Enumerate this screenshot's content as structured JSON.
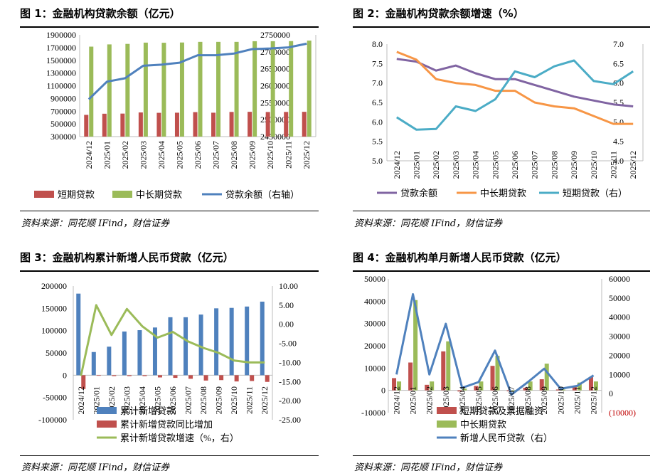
{
  "charts": [
    {
      "title": "图 1：金融机构贷款余额（亿元）",
      "source": "资料来源：同花顺 IFind，财信证券",
      "chart_data": {
        "type": "bar",
        "categories": [
          "2024/12",
          "2025/01",
          "2025/02",
          "2025/03",
          "2025/04",
          "2025/05",
          "2025/06",
          "2025/07",
          "2025/08",
          "2025/09",
          "2025/10",
          "2025/11",
          "2025/12"
        ],
        "left_ticks": [
          "1900000",
          "1700000",
          "1500000",
          "1300000",
          "1100000",
          "900000",
          "700000",
          "500000",
          "300000"
        ],
        "right_ticks": [
          "2750000",
          "2700000",
          "2650000",
          "2600000",
          "2550000",
          "2500000",
          "2450000"
        ],
        "ylim_left": [
          300000,
          1900000
        ],
        "ylim_right": [
          2450000,
          2750000
        ],
        "series": [
          {
            "name": "短期贷款",
            "kind": "bar",
            "axis": "left",
            "color": "#C0504D",
            "values": [
              642000,
              660000,
              662000,
              680000,
              674000,
              676000,
              685000,
              676000,
              688000,
              690000,
              687000,
              688000,
              690000
            ]
          },
          {
            "name": "中长期贷款",
            "kind": "bar",
            "axis": "left",
            "color": "#9BBB59",
            "values": [
              1715000,
              1750000,
              1758000,
              1778000,
              1776000,
              1780000,
              1790000,
              1790000,
              1790000,
              1800000,
              1800000,
              1802000,
              1810000
            ]
          },
          {
            "name": "贷款余额（右轴）",
            "kind": "line",
            "axis": "right",
            "color": "#4F81BD",
            "values": [
              2560000,
              2612000,
              2622000,
              2659000,
              2662000,
              2668000,
              2690000,
              2690000,
              2695000,
              2708000,
              2710000,
              2713000,
              2724000
            ]
          }
        ]
      }
    },
    {
      "title": "图 2：金融机构贷款余额增速（%）",
      "source": "资料来源：同花顺 IFind，财信证券",
      "chart_data": {
        "type": "line",
        "categories": [
          "2024/12",
          "2025/01",
          "2025/02",
          "2025/03",
          "2025/04",
          "2025/05",
          "2025/06",
          "2025/07",
          "2025/08",
          "2025/09",
          "2025/10",
          "2025/11",
          "2025/12"
        ],
        "left_ticks": [
          "8.0",
          "7.5",
          "7.0",
          "6.5",
          "6.0",
          "5.5",
          "5.0"
        ],
        "right_ticks": [
          "7.0",
          "6.5",
          "6.0",
          "5.5",
          "5.0",
          "4.5",
          "4.0"
        ],
        "ylim_left": [
          5.0,
          8.0
        ],
        "ylim_right": [
          4.0,
          7.0
        ],
        "series": [
          {
            "name": "贷款余额",
            "axis": "left",
            "color": "#8064A2",
            "values": [
              7.62,
              7.55,
              7.32,
              7.45,
              7.25,
              7.1,
              7.1,
              6.95,
              6.8,
              6.65,
              6.55,
              6.45,
              6.4
            ]
          },
          {
            "name": "中长期贷款",
            "axis": "left",
            "color": "#F79646",
            "values": [
              7.8,
              7.6,
              7.1,
              7.0,
              6.95,
              6.8,
              6.8,
              6.5,
              6.4,
              6.35,
              6.15,
              5.95,
              5.95
            ]
          },
          {
            "name": "短期贷款（右）",
            "axis": "right",
            "color": "#4BACC6",
            "values": [
              5.12,
              4.8,
              4.82,
              5.4,
              5.28,
              5.58,
              6.3,
              6.15,
              6.43,
              6.58,
              6.05,
              5.97,
              6.3
            ]
          }
        ]
      }
    },
    {
      "title": "图 3：金融机构累计新增人民币贷款（亿元）",
      "source": "资料来源：同花顺 IFind，财信证券",
      "chart_data": {
        "type": "bar",
        "categories": [
          "2024/12",
          "2025/01",
          "2025/02",
          "2025/03",
          "2025/04",
          "2025/05",
          "2025/06",
          "2025/07",
          "2025/08",
          "2025/09",
          "2025/10",
          "2025/11",
          "2025/12"
        ],
        "left_ticks": [
          "200000",
          "150000",
          "100000",
          "50000",
          "0",
          "-50000",
          "-100000"
        ],
        "right_ticks": [
          "10.00",
          "5.00",
          "0.00",
          "-5.00",
          "-10.00",
          "-15.00",
          "-20.00",
          "-25.00"
        ],
        "ylim_left": [
          -100000,
          200000
        ],
        "ylim_right": [
          -25,
          10
        ],
        "series": [
          {
            "name": "累计新增贷款",
            "kind": "bar",
            "axis": "left",
            "color": "#4F81BD",
            "values": [
              183000,
              52000,
              64000,
              98000,
              101000,
              107000,
              130000,
              130000,
              136000,
              150000,
              151000,
              154000,
              165000
            ]
          },
          {
            "name": "累计新增贷款同比增加",
            "kind": "bar",
            "axis": "left",
            "color": "#C0504D",
            "values": [
              -31000,
              -1000,
              -2000,
              -2000,
              -2000,
              -5000,
              -6000,
              -8000,
              -12000,
              -11000,
              -14000,
              -13000,
              -15000
            ]
          },
          {
            "name": "累计新增贷款增速（%，右）",
            "kind": "line",
            "axis": "right",
            "color": "#9BBB59",
            "values": [
              -13.5,
              5,
              -2.8,
              4,
              -0.5,
              -3.5,
              -2,
              -4.5,
              -6.2,
              -7.5,
              -9.5,
              -10,
              -10
            ]
          }
        ]
      }
    },
    {
      "title": "图 4：金融机构单月新增人民币贷款（亿元）",
      "source": "资料来源：同花顺 IFind，财信证券",
      "chart_data": {
        "type": "bar",
        "categories": [
          "2024/12",
          "2025/01",
          "2025/02",
          "2025/03",
          "2025/04",
          "2025/05",
          "2025/06",
          "2025/07",
          "2025/08",
          "2025/09",
          "2025/10",
          "2025/11",
          "2025/12"
        ],
        "left_ticks": [
          "50000",
          "40000",
          "30000",
          "20000",
          "10000",
          "0",
          "-10000"
        ],
        "right_ticks": [
          "60000",
          "50000",
          "40000",
          "30000",
          "20000",
          "10000",
          "0",
          "(10000)"
        ],
        "ylim_left": [
          -10000,
          50000
        ],
        "ylim_right": [
          -10000,
          60000
        ],
        "series": [
          {
            "name": "短期贷款及票据融资",
            "kind": "bar",
            "axis": "left",
            "color": "#C0504D",
            "values": [
              5500,
              12500,
              2500,
              17500,
              -500,
              2000,
              11000,
              -400,
              1200,
              5000,
              400,
              1500,
              6000
            ]
          },
          {
            "name": "中长期贷款",
            "kind": "bar",
            "axis": "left",
            "color": "#9BBB59",
            "values": [
              4000,
              40500,
              4000,
              22000,
              800,
              4000,
              15500,
              -400,
              4000,
              12000,
              400,
              3500,
              4000
            ]
          },
          {
            "name": "新增人民币贷款（右）",
            "kind": "line",
            "axis": "right",
            "color": "#4F81BD",
            "values": [
              10000,
              52000,
              10000,
              36500,
              3000,
              6000,
              22500,
              -500,
              6000,
              13000,
              2500,
              4000,
              9500
            ]
          }
        ]
      }
    }
  ]
}
